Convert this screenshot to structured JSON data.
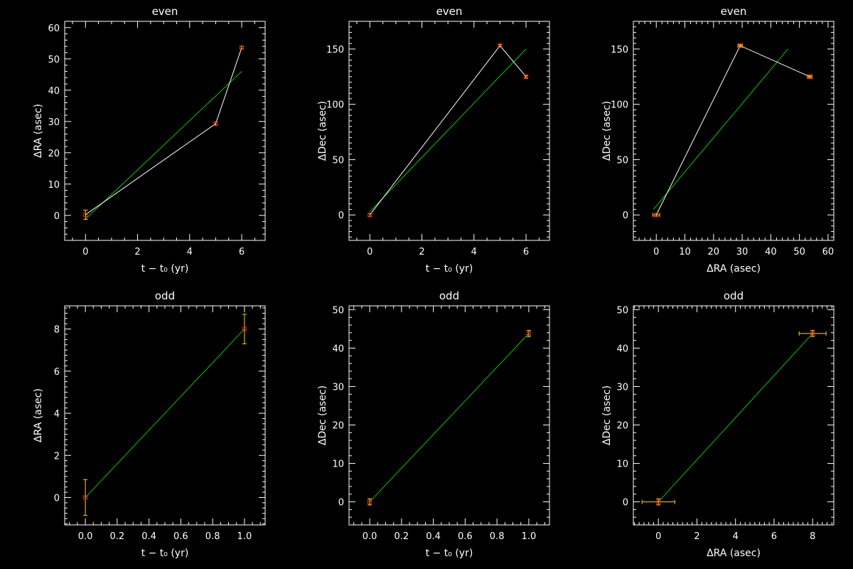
{
  "colors": {
    "background": "#000000",
    "axes": "#ffffff",
    "data_line": "#ffffff",
    "fit_line": "#00cc00",
    "marker": "#ff2020",
    "error_bar": "#ffd700"
  },
  "chart_data": [
    {
      "type": "line",
      "title": "even",
      "xlabel": "t − t₀ (yr)",
      "ylabel": "ΔRA (asec)",
      "xlim": [
        -0.8,
        6.9
      ],
      "ylim": [
        -8,
        62
      ],
      "xticks": [
        0,
        2,
        4,
        6
      ],
      "xtick_labels": [
        "0",
        "2",
        "4",
        "6"
      ],
      "yticks": [
        0,
        10,
        20,
        30,
        40,
        50,
        60
      ],
      "ytick_labels": [
        "0",
        "10",
        "20",
        "30",
        "40",
        "50",
        "60"
      ],
      "xminor": 0.5,
      "yminor": 2,
      "points": [
        {
          "x": 0,
          "y": 0.2,
          "xerr": 0,
          "yerr": 1.5
        },
        {
          "x": 5,
          "y": 29.3,
          "xerr": 0,
          "yerr": 0.5
        },
        {
          "x": 6,
          "y": 53.6,
          "xerr": 0,
          "yerr": 0.5
        }
      ],
      "connect_points": true,
      "fit": [
        {
          "x": 0,
          "y": -1.2
        },
        {
          "x": 6,
          "y": 46.0
        }
      ]
    },
    {
      "type": "line",
      "title": "even",
      "xlabel": "t − t₀ (yr)",
      "ylabel": "ΔDec (asec)",
      "xlim": [
        -0.8,
        6.9
      ],
      "ylim": [
        -23,
        175
      ],
      "xticks": [
        0,
        2,
        4,
        6
      ],
      "xtick_labels": [
        "0",
        "2",
        "4",
        "6"
      ],
      "yticks": [
        0,
        50,
        100,
        150
      ],
      "ytick_labels": [
        "0",
        "50",
        "100",
        "150"
      ],
      "xminor": 0.5,
      "yminor": 5,
      "points": [
        {
          "x": 0,
          "y": 0,
          "xerr": 0,
          "yerr": 1.5
        },
        {
          "x": 5,
          "y": 153,
          "xerr": 0,
          "yerr": 1.0
        },
        {
          "x": 6,
          "y": 125,
          "xerr": 0,
          "yerr": 1.0
        }
      ],
      "connect_points": true,
      "fit": [
        {
          "x": 0,
          "y": 3
        },
        {
          "x": 6,
          "y": 150
        }
      ]
    },
    {
      "type": "line",
      "title": "even",
      "xlabel": "ΔRA (asec)",
      "ylabel": "ΔDec (asec)",
      "xlim": [
        -8,
        62
      ],
      "ylim": [
        -23,
        175
      ],
      "xticks": [
        0,
        10,
        20,
        30,
        40,
        50,
        60
      ],
      "xtick_labels": [
        "0",
        "10",
        "20",
        "30",
        "40",
        "50",
        "60"
      ],
      "yticks": [
        0,
        50,
        100,
        150
      ],
      "ytick_labels": [
        "0",
        "50",
        "100",
        "150"
      ],
      "xminor": 2,
      "yminor": 5,
      "points": [
        {
          "x": 0,
          "y": 0,
          "xerr": 1.2,
          "yerr": 1.5
        },
        {
          "x": 29.3,
          "y": 153,
          "xerr": 0.8,
          "yerr": 1.0
        },
        {
          "x": 53.6,
          "y": 125,
          "xerr": 0.8,
          "yerr": 1.0
        }
      ],
      "connect_points": true,
      "fit": [
        {
          "x": -1,
          "y": 5
        },
        {
          "x": 46,
          "y": 150
        }
      ]
    },
    {
      "type": "line",
      "title": "odd",
      "xlabel": "t − t₀ (yr)",
      "ylabel": "ΔRA (asec)",
      "xlim": [
        -0.13,
        1.13
      ],
      "ylim": [
        -1.3,
        9.1
      ],
      "xticks": [
        0,
        0.2,
        0.4,
        0.6,
        0.8,
        1.0
      ],
      "xtick_labels": [
        "0.0",
        "0.2",
        "0.4",
        "0.6",
        "0.8",
        "1.0"
      ],
      "yticks": [
        0,
        2,
        4,
        6,
        8
      ],
      "ytick_labels": [
        "0",
        "2",
        "4",
        "6",
        "8"
      ],
      "xminor": 0.05,
      "yminor": 0.25,
      "points": [
        {
          "x": 0,
          "y": 0,
          "xerr": 0,
          "yerr": 0.85
        },
        {
          "x": 1,
          "y": 8.0,
          "xerr": 0,
          "yerr": 0.7
        }
      ],
      "connect_points": false,
      "fit": [
        {
          "x": 0,
          "y": 0
        },
        {
          "x": 1,
          "y": 8.0
        }
      ]
    },
    {
      "type": "line",
      "title": "odd",
      "xlabel": "t − t₀ (yr)",
      "ylabel": "ΔDec (asec)",
      "xlim": [
        -0.13,
        1.13
      ],
      "ylim": [
        -6,
        51
      ],
      "xticks": [
        0,
        0.2,
        0.4,
        0.6,
        0.8,
        1.0
      ],
      "xtick_labels": [
        "0.0",
        "0.2",
        "0.4",
        "0.6",
        "0.8",
        "1.0"
      ],
      "yticks": [
        0,
        10,
        20,
        30,
        40,
        50
      ],
      "ytick_labels": [
        "0",
        "10",
        "20",
        "30",
        "40",
        "50"
      ],
      "xminor": 0.05,
      "yminor": 2,
      "points": [
        {
          "x": 0,
          "y": 0,
          "xerr": 0,
          "yerr": 0.8
        },
        {
          "x": 1,
          "y": 43.8,
          "xerr": 0,
          "yerr": 0.8
        }
      ],
      "connect_points": false,
      "fit": [
        {
          "x": 0,
          "y": 0
        },
        {
          "x": 1,
          "y": 43.8
        }
      ]
    },
    {
      "type": "line",
      "title": "odd",
      "xlabel": "ΔRA (asec)",
      "ylabel": "ΔDec (asec)",
      "xlim": [
        -1.3,
        9.1
      ],
      "ylim": [
        -6,
        51
      ],
      "xticks": [
        0,
        2,
        4,
        6,
        8
      ],
      "xtick_labels": [
        "0",
        "2",
        "4",
        "6",
        "8"
      ],
      "yticks": [
        0,
        10,
        20,
        30,
        40,
        50
      ],
      "ytick_labels": [
        "0",
        "10",
        "20",
        "30",
        "40",
        "50"
      ],
      "xminor": 0.25,
      "yminor": 2,
      "points": [
        {
          "x": 0,
          "y": 0,
          "xerr": 0.85,
          "yerr": 0.8
        },
        {
          "x": 8.0,
          "y": 43.8,
          "xerr": 0.7,
          "yerr": 0.8
        }
      ],
      "connect_points": false,
      "fit": [
        {
          "x": 0,
          "y": 0
        },
        {
          "x": 8.0,
          "y": 43.8
        }
      ]
    }
  ]
}
